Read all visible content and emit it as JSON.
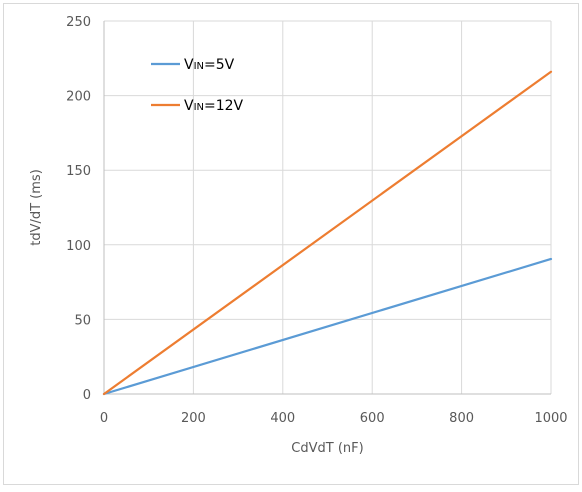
{
  "chart_data": {
    "type": "line",
    "xlabel": "CdVdT (nF)",
    "ylabel": "tdV/dT (ms)",
    "xlim": [
      0,
      1000
    ],
    "ylim": [
      0,
      250
    ],
    "x_ticks": [
      0,
      200,
      400,
      600,
      800,
      1000
    ],
    "y_ticks": [
      0,
      50,
      100,
      150,
      200,
      250
    ],
    "grid": true,
    "legend_position": "top-left",
    "series": [
      {
        "name": "VIN=5V",
        "legend": {
          "main": "V",
          "sub": "IN",
          "rest": "=5V"
        },
        "color": "#5B9BD5",
        "x": [
          0,
          1000
        ],
        "y": [
          0,
          90.5
        ]
      },
      {
        "name": "VIN=12V",
        "legend": {
          "main": "V",
          "sub": "IN",
          "rest": "=12V"
        },
        "color": "#ED7D31",
        "x": [
          0,
          1000
        ],
        "y": [
          0,
          216
        ]
      }
    ]
  }
}
